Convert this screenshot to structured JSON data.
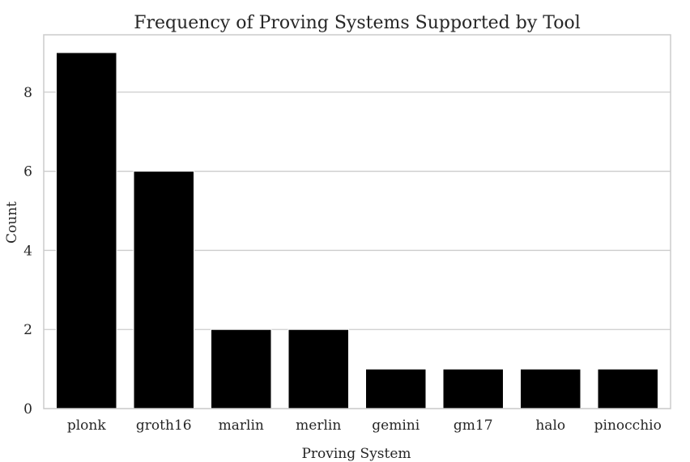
{
  "chart_data": {
    "type": "bar",
    "title": "Frequency of Proving Systems Supported by Tool",
    "xlabel": "Proving System",
    "ylabel": "Count",
    "categories": [
      "plonk",
      "groth16",
      "marlin",
      "merlin",
      "gemini",
      "gm17",
      "halo",
      "pinocchio"
    ],
    "values": [
      9,
      6,
      2,
      2,
      1,
      1,
      1,
      1
    ],
    "ylim": [
      0,
      9.45
    ],
    "yticks": [
      0,
      2,
      4,
      6,
      8
    ],
    "grid": true,
    "bar_color": "#000000",
    "grid_color": "#cccccc"
  }
}
